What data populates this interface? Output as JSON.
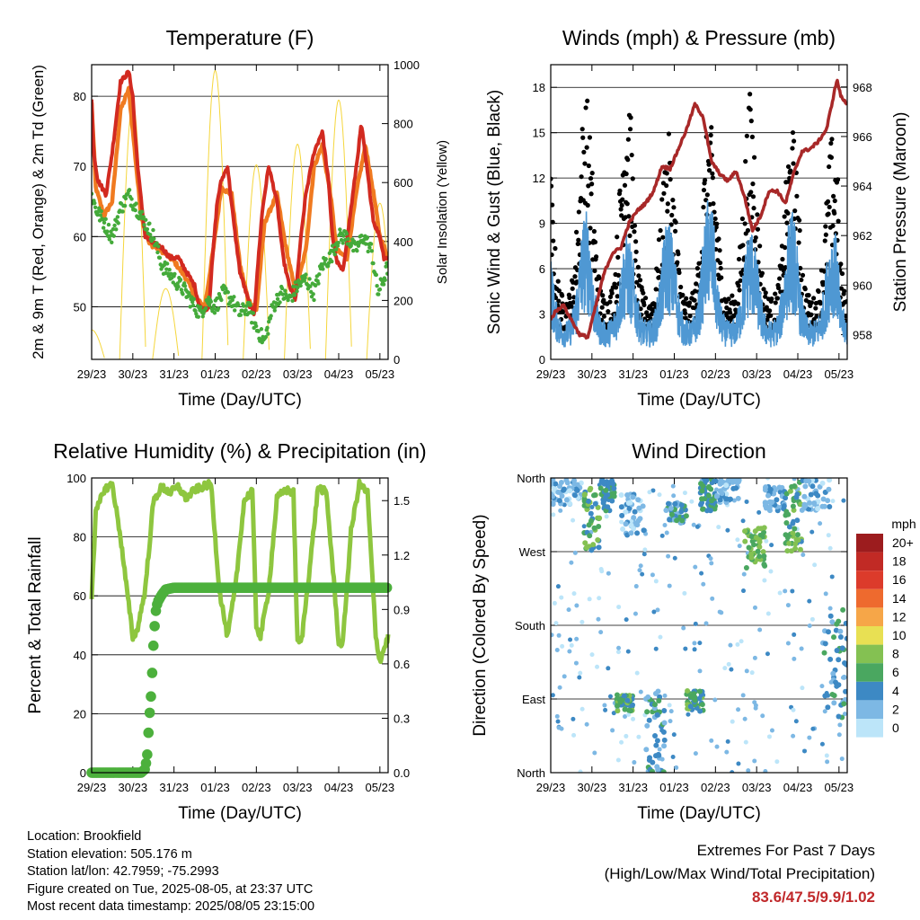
{
  "panels": {
    "temperature": {
      "title": "Temperature (F)",
      "ylabel_left": "2m & 9m T (Red, Orange) & 2m Td (Green)",
      "ylabel_right": "Solar Insolation (Yellow)",
      "xlabel": "Time (Day/UTC)"
    },
    "winds": {
      "title": "Winds (mph) & Pressure (mb)",
      "ylabel_left": "Sonic Wind & Gust (Blue, Black)",
      "ylabel_right": "Station Pressure (Maroon)",
      "xlabel": "Time (Day/UTC)"
    },
    "rh": {
      "title": "Relative Humidity (%) & Precipitation (in)",
      "ylabel_left": "Percent & Total Rainfall",
      "xlabel": "Time (Day/UTC)"
    },
    "wind_direction": {
      "title": "Wind Direction",
      "ylabel_left": "Direction (Colored By Speed)",
      "xlabel": "Time (Day/UTC)",
      "legend_title": "mph"
    }
  },
  "info": {
    "location": "Location: Brookfield",
    "elevation": "Station elevation: 505.176 m",
    "latlon": "Station lat/lon: 42.7959; -75.2993",
    "created": "Figure created on Tue, 2025-08-05, at 23:37 UTC",
    "recent": "Most recent data timestamp: 2025/08/05 23:15:00"
  },
  "extremes": {
    "title": "Extremes For Past 7 Days",
    "subtitle": "(High/Low/Max Wind/Total Precipitation)",
    "values": "83.6/47.5/9.9/1.02"
  },
  "chart_data": [
    {
      "type": "line",
      "title": "Temperature (F)",
      "xlabel": "Time (Day/UTC)",
      "ylabel": "2m & 9m T (Red, Orange) & 2m Td (Green)",
      "y2label": "Solar Insolation (Yellow)",
      "x_ticks": [
        "29/23",
        "30/23",
        "31/23",
        "01/23",
        "02/23",
        "03/23",
        "04/23",
        "05/23"
      ],
      "ylim": [
        42.5,
        84.5
      ],
      "y_ticks": [
        50,
        60,
        70,
        80
      ],
      "y2lim": [
        0,
        1000
      ],
      "y2_ticks": [
        0,
        200,
        400,
        600,
        800,
        1000
      ],
      "grid": "horizontal",
      "series": [
        {
          "color": "#d22a20",
          "axis": "left",
          "x": [
            0,
            0.05,
            0.15,
            0.35,
            0.5,
            0.7,
            0.9,
            1.0,
            1.05,
            1.15,
            1.3,
            1.5,
            1.7,
            1.9,
            2.1,
            2.3,
            2.5,
            2.6,
            2.7,
            2.85,
            2.95,
            3.05,
            3.15,
            3.3,
            3.45,
            3.6,
            3.75,
            3.85,
            3.95,
            4.05,
            4.15,
            4.3,
            4.5,
            4.65,
            4.8,
            4.95,
            5.05,
            5.2,
            5.4,
            5.6,
            5.75,
            5.85,
            5.95,
            6.1,
            6.3,
            6.45,
            6.55,
            6.7,
            6.85,
            7.0,
            7.1,
            7.2
          ],
          "y": [
            79.5,
            72,
            68,
            66,
            72,
            82,
            83.5,
            80,
            75,
            68,
            60,
            59,
            58.5,
            57,
            57,
            55,
            53,
            50.5,
            49.5,
            50,
            58,
            65,
            68,
            70,
            62,
            55,
            52,
            50,
            49,
            57,
            64,
            70,
            65,
            57,
            53,
            51,
            58,
            66,
            72,
            75,
            68,
            60,
            56.5,
            55,
            64,
            71,
            76,
            69,
            62,
            60,
            57,
            57
          ]
        },
        {
          "color": "#f07a20",
          "axis": "left",
          "x": [
            0,
            0.1,
            0.3,
            0.5,
            0.7,
            0.9,
            1.05,
            1.2,
            1.4,
            1.7,
            2.0,
            2.3,
            2.55,
            2.75,
            2.95,
            3.15,
            3.4,
            3.6,
            3.8,
            4.0,
            4.2,
            4.5,
            4.7,
            4.95,
            5.2,
            5.4,
            5.6,
            5.8,
            5.95,
            6.2,
            6.45,
            6.65,
            6.85,
            7.0,
            7.2
          ],
          "y": [
            79,
            67,
            63,
            65,
            78,
            81,
            72,
            63,
            59,
            58,
            56.5,
            54,
            51,
            50,
            58,
            67,
            66,
            56,
            51,
            49.5,
            62,
            66,
            59,
            52,
            58,
            70,
            73,
            66,
            58,
            57,
            67,
            73,
            66,
            60,
            57
          ]
        },
        {
          "color": "#44aa3a",
          "axis": "left",
          "x": [
            0,
            0.1,
            0.3,
            0.5,
            0.7,
            0.9,
            1.1,
            1.3,
            1.5,
            1.7,
            2.0,
            2.3,
            2.5,
            2.65,
            2.8,
            3.0,
            3.2,
            3.4,
            3.6,
            3.8,
            4.0,
            4.2,
            4.4,
            4.6,
            4.8,
            5.0,
            5.2,
            5.4,
            5.6,
            5.8,
            6.0,
            6.2,
            6.4,
            6.6,
            6.8,
            6.95,
            7.1,
            7.2
          ],
          "y": [
            66,
            64,
            62,
            60,
            64,
            66,
            64,
            62,
            60,
            56,
            54,
            52,
            50,
            49,
            51,
            50,
            52,
            51,
            49,
            50,
            47,
            45,
            50,
            52,
            51,
            53,
            54,
            52,
            56,
            57,
            60,
            60,
            58,
            60,
            58,
            52,
            54,
            56
          ]
        }
      ],
      "solar_peaks": [
        {
          "x": 0.0,
          "value": 100
        },
        {
          "x": 1.0,
          "value": 870
        },
        {
          "x": 1.8,
          "value": 240
        },
        {
          "x": 3.0,
          "value": 980
        },
        {
          "x": 4.0,
          "value": 660
        },
        {
          "x": 5.0,
          "value": 730
        },
        {
          "x": 6.0,
          "value": 880
        },
        {
          "x": 7.0,
          "value": 530
        }
      ],
      "solar_color": "#f5d63c"
    },
    {
      "type": "line",
      "title": "Winds (mph) & Pressure (mb)",
      "xlabel": "Time (Day/UTC)",
      "ylabel": "Sonic Wind & Gust (Blue, Black)",
      "y2label": "Station Pressure (Maroon)",
      "x_ticks": [
        "29/23",
        "30/23",
        "31/23",
        "01/23",
        "02/23",
        "03/23",
        "04/23",
        "05/23"
      ],
      "ylim": [
        0,
        19.5
      ],
      "y_ticks": [
        0,
        3,
        6,
        9,
        12,
        15,
        18
      ],
      "y2lim": [
        957.0,
        968.9
      ],
      "y2_ticks": [
        958,
        960,
        962,
        964,
        966,
        968
      ],
      "grid": "horizontal",
      "wind_peak_means": [
        10,
        8.5,
        9.5,
        11,
        9,
        10,
        9,
        6
      ],
      "gust_peaks": [
        17.8,
        18.6,
        15.0,
        16.0,
        17.8,
        15.5,
        15.0,
        9.5
      ],
      "pressure": {
        "color": "#a82828",
        "x": [
          0,
          0.1,
          0.3,
          0.5,
          0.7,
          0.9,
          1.1,
          1.3,
          1.5,
          1.7,
          1.9,
          2.1,
          2.3,
          2.5,
          2.7,
          2.9,
          3.1,
          3.3,
          3.5,
          3.7,
          3.9,
          4.1,
          4.3,
          4.5,
          4.7,
          4.9,
          5.1,
          5.3,
          5.5,
          5.7,
          5.9,
          6.1,
          6.3,
          6.5,
          6.7,
          6.85,
          6.95,
          7.05,
          7.2
        ],
        "y": [
          958.6,
          958.9,
          959.2,
          958.6,
          958.0,
          957.9,
          959.2,
          960.5,
          961.3,
          961.5,
          962.5,
          963.0,
          963.3,
          963.8,
          964.8,
          964.7,
          965.5,
          966.3,
          967.3,
          966.8,
          965.0,
          964.5,
          964.2,
          964.6,
          963.6,
          962.2,
          962.8,
          963.8,
          963.8,
          963.3,
          964.5,
          965.4,
          965.5,
          965.8,
          966.3,
          967.5,
          968.3,
          967.6,
          967.3
        ]
      }
    },
    {
      "type": "line",
      "title": "Relative Humidity (%) & Precipitation (in)",
      "xlabel": "Time (Day/UTC)",
      "ylabel": "Percent & Total Rainfall",
      "x_ticks": [
        "29/23",
        "30/23",
        "31/23",
        "01/23",
        "02/23",
        "03/23",
        "04/23",
        "05/23"
      ],
      "ylim": [
        0,
        100
      ],
      "y_ticks": [
        0,
        20,
        40,
        60,
        80,
        100
      ],
      "y2lim": [
        0,
        1.625
      ],
      "y2_ticks": [
        0.0,
        0.3,
        0.6,
        0.9,
        1.2,
        1.5
      ],
      "grid": "horizontal",
      "series": [
        {
          "name": "RH",
          "color": "#8ec63f",
          "axis": "left",
          "x": [
            0,
            0.1,
            0.3,
            0.5,
            0.7,
            0.9,
            1.0,
            1.1,
            1.3,
            1.5,
            1.7,
            1.9,
            2.1,
            2.3,
            2.5,
            2.7,
            2.9,
            3.1,
            3.3,
            3.5,
            3.7,
            3.9,
            4.0,
            4.1,
            4.3,
            4.5,
            4.7,
            4.9,
            5.0,
            5.1,
            5.3,
            5.5,
            5.7,
            5.9,
            6.0,
            6.1,
            6.3,
            6.5,
            6.7,
            6.9,
            7.0,
            7.2
          ],
          "y": [
            60,
            88,
            96,
            98,
            80,
            57,
            46,
            48,
            62,
            92,
            97,
            95,
            97,
            93,
            96,
            97,
            98,
            62,
            46,
            64,
            92,
            96,
            50,
            46,
            62,
            93,
            96,
            95,
            44,
            45,
            70,
            97,
            95,
            62,
            44,
            44,
            82,
            98,
            95,
            46,
            38,
            46
          ]
        },
        {
          "name": "Precip",
          "color": "#4cb03c",
          "axis": "right",
          "x": [
            0,
            1.2,
            1.3,
            1.35,
            1.4,
            1.45,
            1.5,
            1.55,
            1.6,
            1.7,
            1.8,
            2.0,
            7.2
          ],
          "y": [
            0,
            0,
            0.02,
            0.1,
            0.3,
            0.45,
            0.7,
            0.88,
            0.94,
            0.98,
            1.01,
            1.02,
            1.02
          ]
        }
      ]
    },
    {
      "type": "scatter",
      "title": "Wind Direction",
      "xlabel": "Time (Day/UTC)",
      "ylabel": "Direction (Colored By Speed)",
      "x_ticks": [
        "29/23",
        "30/23",
        "31/23",
        "01/23",
        "02/23",
        "03/23",
        "04/23",
        "05/23"
      ],
      "y_ticks": [
        "North",
        "East",
        "South",
        "West",
        "North"
      ],
      "ylim": [
        0,
        360
      ],
      "grid": "horizontal",
      "legend": {
        "title": "mph",
        "position": "right",
        "labels": [
          "20+",
          "18",
          "16",
          "14",
          "12",
          "10",
          "8",
          "6",
          "4",
          "2",
          "0"
        ],
        "colors": [
          "#9c1c1e",
          "#c12a25",
          "#dc3b2b",
          "#ee6a2e",
          "#f6a648",
          "#e8e053",
          "#84c152",
          "#4aa760",
          "#3d89c4",
          "#7db8e4",
          "#bce5f9"
        ]
      },
      "clusters": [
        {
          "x": [
            0.0,
            0.75
          ],
          "dir": [
            325,
            358
          ],
          "speed": 2
        },
        {
          "x": [
            0.8,
            1.2
          ],
          "dir": [
            270,
            350
          ],
          "speed": 6
        },
        {
          "x": [
            1.2,
            1.55
          ],
          "dir": [
            320,
            358
          ],
          "speed": 5
        },
        {
          "x": [
            1.6,
            2.0
          ],
          "dir": [
            75,
            95
          ],
          "speed": 6
        },
        {
          "x": [
            1.7,
            2.3
          ],
          "dir": [
            290,
            340
          ],
          "speed": 2
        },
        {
          "x": [
            2.3,
            2.8
          ],
          "dir": [
            0,
            100
          ],
          "speed": 4
        },
        {
          "x": [
            2.8,
            3.3
          ],
          "dir": [
            305,
            330
          ],
          "speed": 4
        },
        {
          "x": [
            3.3,
            3.7
          ],
          "dir": [
            75,
            100
          ],
          "speed": 6
        },
        {
          "x": [
            3.6,
            4.0
          ],
          "dir": [
            320,
            360
          ],
          "speed": 5
        },
        {
          "x": [
            4.0,
            4.6
          ],
          "dir": [
            330,
            360
          ],
          "speed": 2
        },
        {
          "x": [
            4.7,
            5.2
          ],
          "dir": [
            250,
            300
          ],
          "speed": 7
        },
        {
          "x": [
            5.2,
            5.7
          ],
          "dir": [
            320,
            350
          ],
          "speed": 3
        },
        {
          "x": [
            5.7,
            6.1
          ],
          "dir": [
            270,
            355
          ],
          "speed": 6
        },
        {
          "x": [
            6.1,
            6.8
          ],
          "dir": [
            320,
            358
          ],
          "speed": 2
        },
        {
          "x": [
            6.6,
            7.2
          ],
          "dir": [
            60,
            200
          ],
          "speed": 4
        }
      ]
    }
  ]
}
